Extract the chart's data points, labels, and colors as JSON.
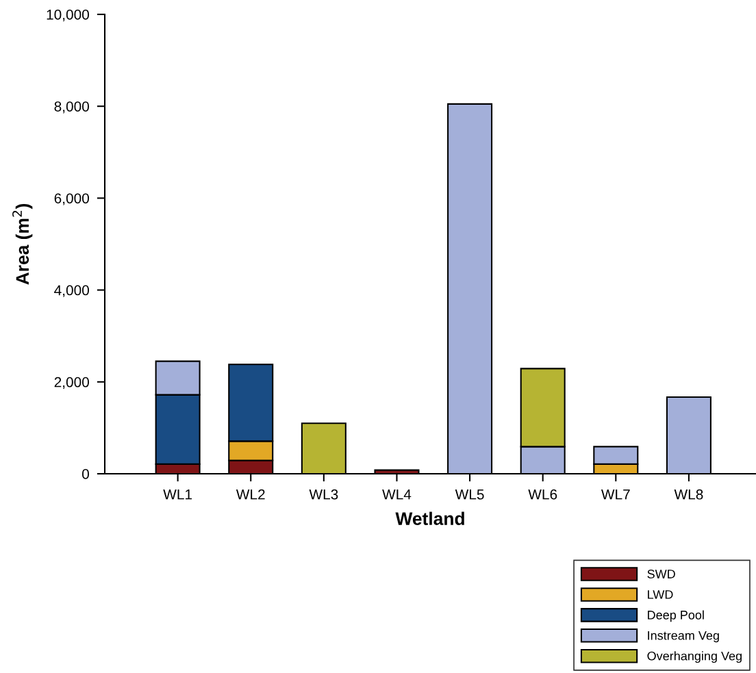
{
  "chart_data": {
    "type": "bar",
    "stacked": true,
    "xlabel": "Wetland",
    "ylabel": "Area (m$^{2}$)",
    "categories": [
      "WL1",
      "WL2",
      "WL3",
      "WL4",
      "WL5",
      "WL6",
      "WL7",
      "WL8"
    ],
    "series": [
      {
        "name": "SWD",
        "color": "#7f1416",
        "values": [
          210,
          290,
          null,
          80,
          null,
          null,
          null,
          null
        ]
      },
      {
        "name": "LWD",
        "color": "#e2a825",
        "values": [
          null,
          420,
          null,
          null,
          null,
          null,
          210,
          null
        ]
      },
      {
        "name": "Deep Pool",
        "color": "#194c84",
        "values": [
          1510,
          1670,
          null,
          null,
          null,
          null,
          null,
          null
        ]
      },
      {
        "name": "Instream Veg",
        "color": "#a3afd9",
        "values": [
          730,
          null,
          null,
          null,
          8050,
          590,
          380,
          1670
        ]
      },
      {
        "name": "Overhanging Veg",
        "color": "#b6b433",
        "values": [
          null,
          null,
          1100,
          null,
          null,
          1700,
          null,
          null
        ]
      }
    ],
    "ylim": [
      0,
      10000
    ],
    "yticks": [
      {
        "value": 0,
        "label": "0"
      },
      {
        "value": 2000,
        "label": "2,000"
      },
      {
        "value": 4000,
        "label": "4,000"
      },
      {
        "value": 6000,
        "label": "6,000"
      },
      {
        "value": 8000,
        "label": "8,000"
      },
      {
        "value": 10000,
        "label": "10,000"
      }
    ],
    "grid": false,
    "legend": "bottom right"
  }
}
